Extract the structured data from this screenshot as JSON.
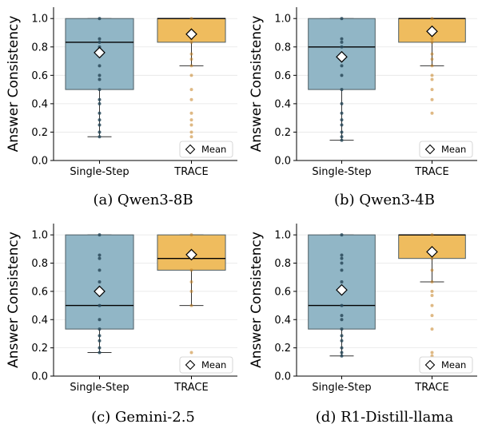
{
  "figure": {
    "legend_label": "Mean",
    "colors": {
      "single_step_box": "#91b6c6",
      "trace_box": "#efbc5e",
      "single_step_dots": "#2a4a5a",
      "trace_dots": "#c47f1f",
      "grid": "#e6e6e6"
    }
  },
  "chart_data": [
    {
      "type": "box",
      "caption": "(a) Qwen3-8B",
      "ylabel": "Answer Consistency",
      "ylim": [
        0,
        1.08
      ],
      "yticks": [
        "0.0",
        "0.2",
        "0.4",
        "0.6",
        "0.8",
        "1.0"
      ],
      "categories": [
        "Single-Step",
        "TRACE"
      ],
      "legend": "Mean",
      "legend_position": "lower-right",
      "series": [
        {
          "name": "Single-Step",
          "q1": 0.5,
          "median": 0.833,
          "q3": 1.0,
          "whisker_low": 0.167,
          "whisker_high": 1.0,
          "mean": 0.76,
          "points": [
            1.0,
            0.857,
            0.833,
            0.8,
            0.75,
            0.667,
            0.6,
            0.571,
            0.5,
            0.429,
            0.4,
            0.333,
            0.286,
            0.25,
            0.2,
            0.167
          ]
        },
        {
          "name": "TRACE",
          "q1": 0.833,
          "median": 1.0,
          "q3": 1.0,
          "whisker_low": 0.667,
          "whisker_high": 1.0,
          "mean": 0.89,
          "points": [
            1.0,
            0.857,
            0.833,
            0.75,
            0.714,
            0.667,
            0.6,
            0.5,
            0.429,
            0.333,
            0.286,
            0.25,
            0.2,
            0.167
          ]
        }
      ]
    },
    {
      "type": "box",
      "caption": "(b) Qwen3-4B",
      "ylabel": "Answer Consistency",
      "ylim": [
        0,
        1.08
      ],
      "yticks": [
        "0.0",
        "0.2",
        "0.4",
        "0.6",
        "0.8",
        "1.0"
      ],
      "categories": [
        "Single-Step",
        "TRACE"
      ],
      "legend": "Mean",
      "legend_position": "lower-right",
      "series": [
        {
          "name": "Single-Step",
          "q1": 0.5,
          "median": 0.8,
          "q3": 1.0,
          "whisker_low": 0.143,
          "whisker_high": 1.0,
          "mean": 0.73,
          "points": [
            1.0,
            0.857,
            0.833,
            0.8,
            0.75,
            0.667,
            0.6,
            0.5,
            0.4,
            0.333,
            0.286,
            0.25,
            0.2,
            0.167,
            0.143
          ]
        },
        {
          "name": "TRACE",
          "q1": 0.833,
          "median": 1.0,
          "q3": 1.0,
          "whisker_low": 0.667,
          "whisker_high": 1.0,
          "mean": 0.91,
          "points": [
            1.0,
            0.857,
            0.833,
            0.75,
            0.714,
            0.667,
            0.6,
            0.571,
            0.5,
            0.429,
            0.333
          ]
        }
      ]
    },
    {
      "type": "box",
      "caption": "(c) Gemini-2.5",
      "ylabel": "Answer Consistency",
      "ylim": [
        0,
        1.08
      ],
      "yticks": [
        "0.0",
        "0.2",
        "0.4",
        "0.6",
        "0.8",
        "1.0"
      ],
      "categories": [
        "Single-Step",
        "TRACE"
      ],
      "legend": "Mean",
      "legend_position": "lower-right",
      "series": [
        {
          "name": "Single-Step",
          "q1": 0.333,
          "median": 0.5,
          "q3": 1.0,
          "whisker_low": 0.167,
          "whisker_high": 1.0,
          "mean": 0.6,
          "points": [
            1.0,
            0.857,
            0.833,
            0.75,
            0.667,
            0.6,
            0.5,
            0.4,
            0.333,
            0.286,
            0.25,
            0.2,
            0.167
          ]
        },
        {
          "name": "TRACE",
          "q1": 0.75,
          "median": 0.833,
          "q3": 1.0,
          "whisker_low": 0.5,
          "whisker_high": 1.0,
          "mean": 0.86,
          "points": [
            1.0,
            0.857,
            0.833,
            0.75,
            0.667,
            0.6,
            0.5,
            0.167
          ]
        }
      ]
    },
    {
      "type": "box",
      "caption": "(d) R1-Distill-llama",
      "ylabel": "Answer Consistency",
      "ylim": [
        0,
        1.08
      ],
      "yticks": [
        "0.0",
        "0.2",
        "0.4",
        "0.6",
        "0.8",
        "1.0"
      ],
      "categories": [
        "Single-Step",
        "TRACE"
      ],
      "legend": "Mean",
      "legend_position": "lower-right",
      "series": [
        {
          "name": "Single-Step",
          "q1": 0.333,
          "median": 0.5,
          "q3": 1.0,
          "whisker_low": 0.143,
          "whisker_high": 1.0,
          "mean": 0.61,
          "points": [
            1.0,
            0.857,
            0.833,
            0.8,
            0.75,
            0.667,
            0.6,
            0.5,
            0.429,
            0.4,
            0.333,
            0.286,
            0.25,
            0.2,
            0.167,
            0.143
          ]
        },
        {
          "name": "TRACE",
          "q1": 0.833,
          "median": 1.0,
          "q3": 1.0,
          "whisker_low": 0.667,
          "whisker_high": 1.0,
          "mean": 0.88,
          "points": [
            1.0,
            0.857,
            0.833,
            0.75,
            0.667,
            0.6,
            0.571,
            0.5,
            0.429,
            0.333,
            0.167,
            0.143
          ]
        }
      ]
    }
  ]
}
